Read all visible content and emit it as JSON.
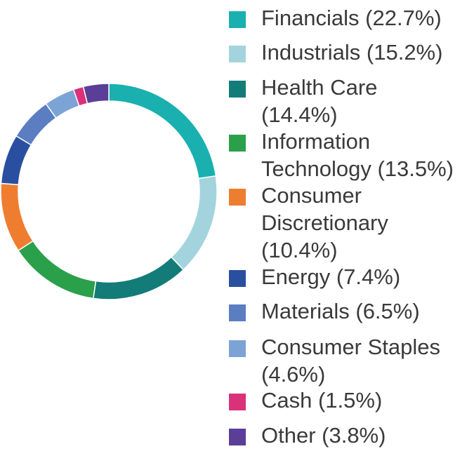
{
  "chart_data": {
    "type": "pie",
    "variant": "donut",
    "legend_position": "right",
    "categories": [
      "Financials",
      "Industrials",
      "Health Care",
      "Information Technology",
      "Consumer Discretionary",
      "Energy",
      "Materials",
      "Consumer Staples",
      "Cash",
      "Other"
    ],
    "values": [
      22.7,
      15.2,
      14.4,
      13.5,
      10.4,
      7.4,
      6.5,
      4.6,
      1.5,
      3.8
    ],
    "colors": [
      "#1ab0b0",
      "#a3d4de",
      "#137b78",
      "#2aa04a",
      "#ee7d30",
      "#2a4fa0",
      "#5b7ec2",
      "#7ba3d6",
      "#d9317a",
      "#5a3e98"
    ],
    "legend": [
      {
        "label": "Financials (22.7%)"
      },
      {
        "label": "Industrials (15.2%)"
      },
      {
        "label": "Health Care (14.4%)"
      },
      {
        "label": "Information Technology (13.5%)"
      },
      {
        "label": "Consumer Discretionary (10.4%)"
      },
      {
        "label": "Energy (7.4%)"
      },
      {
        "label": "Materials (6.5%)"
      },
      {
        "label": "Consumer Staples (4.6%)"
      },
      {
        "label": "Cash (1.5%)"
      },
      {
        "label": "Other (3.8%)"
      }
    ]
  }
}
